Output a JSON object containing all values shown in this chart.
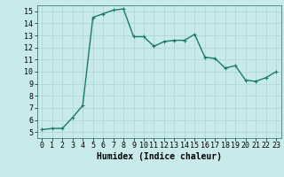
{
  "x": [
    0,
    1,
    2,
    3,
    4,
    5,
    6,
    7,
    8,
    9,
    10,
    11,
    12,
    13,
    14,
    15,
    16,
    17,
    18,
    19,
    20,
    21,
    22,
    23
  ],
  "y": [
    5.2,
    5.3,
    5.3,
    6.2,
    7.2,
    14.5,
    14.8,
    15.1,
    15.2,
    12.9,
    12.9,
    12.1,
    12.5,
    12.6,
    12.6,
    13.1,
    11.2,
    11.1,
    10.3,
    10.5,
    9.3,
    9.2,
    9.5,
    10.0
  ],
  "line_color": "#1a7a6a",
  "marker": "+",
  "bg_color": "#c8eaea",
  "grid_color": "#b0d8d8",
  "xlabel": "Humidex (Indice chaleur)",
  "xlim": [
    -0.5,
    23.5
  ],
  "ylim": [
    4.5,
    15.5
  ],
  "xticks": [
    0,
    1,
    2,
    3,
    4,
    5,
    6,
    7,
    8,
    9,
    10,
    11,
    12,
    13,
    14,
    15,
    16,
    17,
    18,
    19,
    20,
    21,
    22,
    23
  ],
  "yticks": [
    5,
    6,
    7,
    8,
    9,
    10,
    11,
    12,
    13,
    14,
    15
  ],
  "xlabel_fontsize": 7,
  "tick_fontsize": 6,
  "line_width": 1.0,
  "marker_size": 3
}
